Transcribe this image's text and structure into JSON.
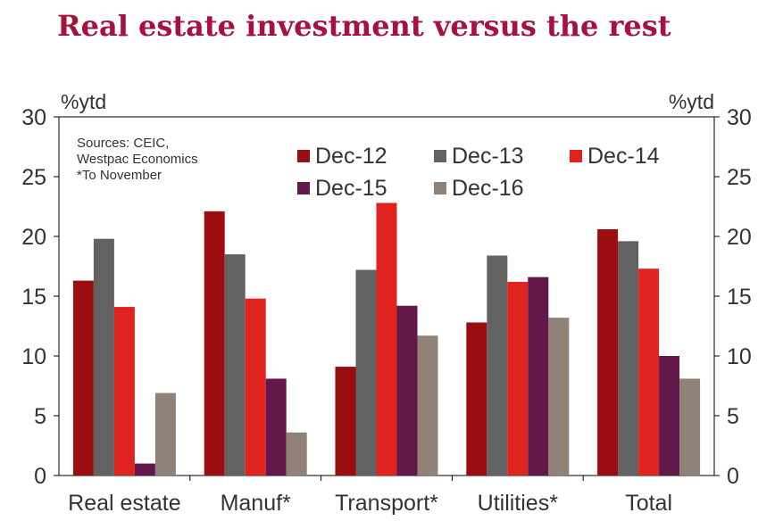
{
  "chart_data": {
    "type": "bar",
    "title": "Real estate investment versus the rest",
    "ylabel_left": "%ytd",
    "ylabel_right": "%ytd",
    "ylim": [
      0,
      30
    ],
    "yticks": [
      0,
      5,
      10,
      15,
      20,
      25,
      30
    ],
    "categories": [
      "Real estate",
      "Manuf*",
      "Transport*",
      "Utilities*",
      "Total"
    ],
    "series": [
      {
        "name": "Dec-12",
        "color": "#9b0d10",
        "values": [
          16.3,
          22.1,
          9.1,
          12.8,
          20.6
        ]
      },
      {
        "name": "Dec-13",
        "color": "#626262",
        "values": [
          19.8,
          18.5,
          17.2,
          18.4,
          19.6
        ]
      },
      {
        "name": "Dec-14",
        "color": "#e0231f",
        "values": [
          14.1,
          14.8,
          22.8,
          16.2,
          17.3
        ]
      },
      {
        "name": "Dec-15",
        "color": "#62184a",
        "values": [
          1.0,
          8.1,
          14.2,
          16.6,
          10.0
        ]
      },
      {
        "name": "Dec-16",
        "color": "#908276",
        "values": [
          6.9,
          3.6,
          11.7,
          13.2,
          8.1
        ]
      }
    ],
    "annotation": [
      "Sources: CEIC,",
      "Westpac Economics",
      "*To November"
    ],
    "grid": false,
    "legend": "top-center"
  }
}
